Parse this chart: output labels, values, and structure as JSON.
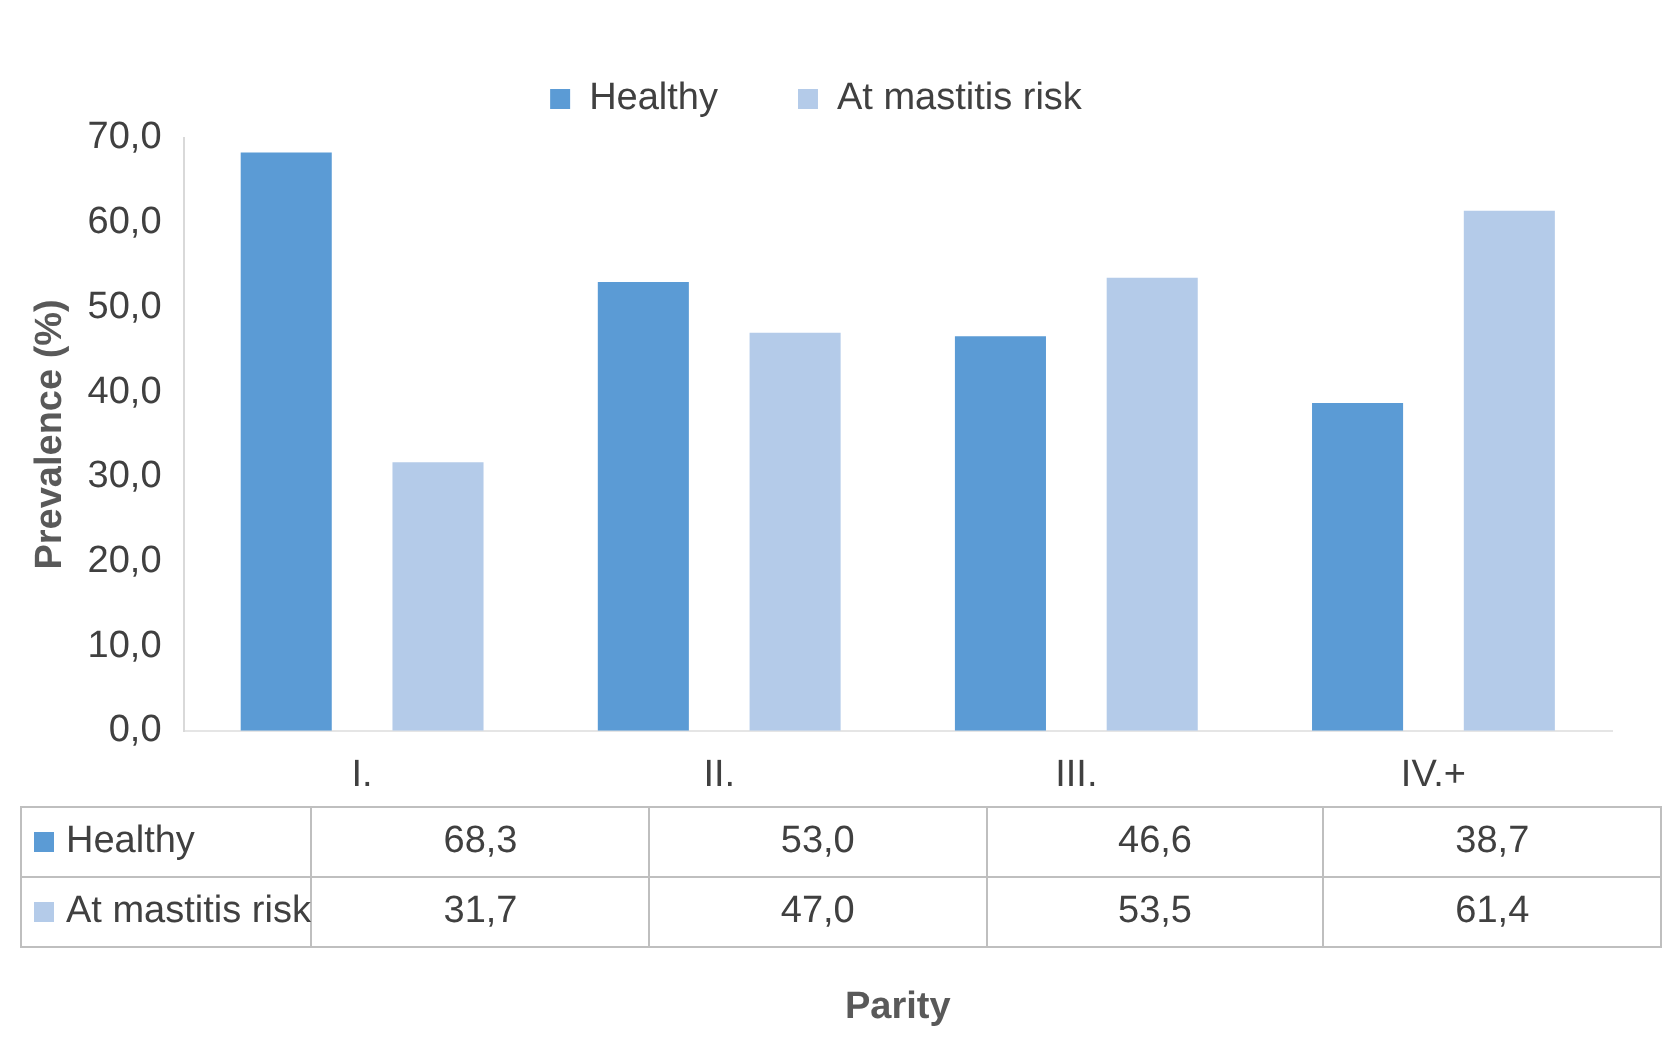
{
  "chart_data": {
    "type": "bar",
    "xlabel": "Parity",
    "ylabel": "Prevalence (%)",
    "categories": [
      "I.",
      "II.",
      "III.",
      "IV.+"
    ],
    "series": [
      {
        "name": "Healthy",
        "color": "#5b9bd5",
        "values": [
          68.3,
          53.0,
          46.6,
          38.7
        ],
        "value_labels": [
          "68,3",
          "53,0",
          "46,6",
          "38,7"
        ]
      },
      {
        "name": "At mastitis risk",
        "color": "#b4cbe9",
        "values": [
          31.7,
          47.0,
          53.5,
          61.4
        ],
        "value_labels": [
          "31,7",
          "47,0",
          "53,5",
          "61,4"
        ]
      }
    ],
    "ylim": [
      0,
      70
    ],
    "yticks": [
      {
        "value": 0,
        "label": "0,0"
      },
      {
        "value": 10,
        "label": "10,0"
      },
      {
        "value": 20,
        "label": "20,0"
      },
      {
        "value": 30,
        "label": "30,0"
      },
      {
        "value": 40,
        "label": "40,0"
      },
      {
        "value": 50,
        "label": "50,0"
      },
      {
        "value": 60,
        "label": "60,0"
      },
      {
        "value": 70,
        "label": "70,0"
      }
    ],
    "grid": false,
    "legend": "top"
  }
}
